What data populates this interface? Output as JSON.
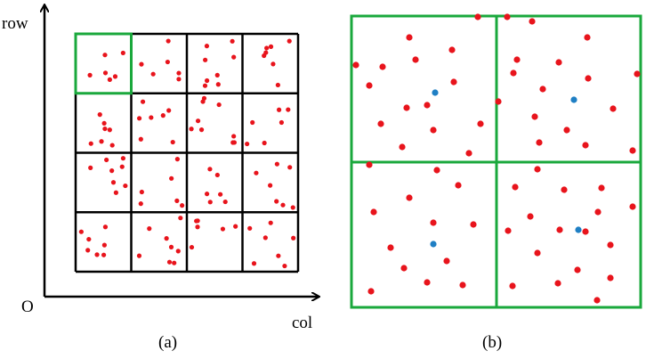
{
  "labels": {
    "y_axis": "row",
    "origin": "O",
    "x_axis": "col",
    "caption_a": "(a)",
    "caption_b": "(b)"
  }
}
